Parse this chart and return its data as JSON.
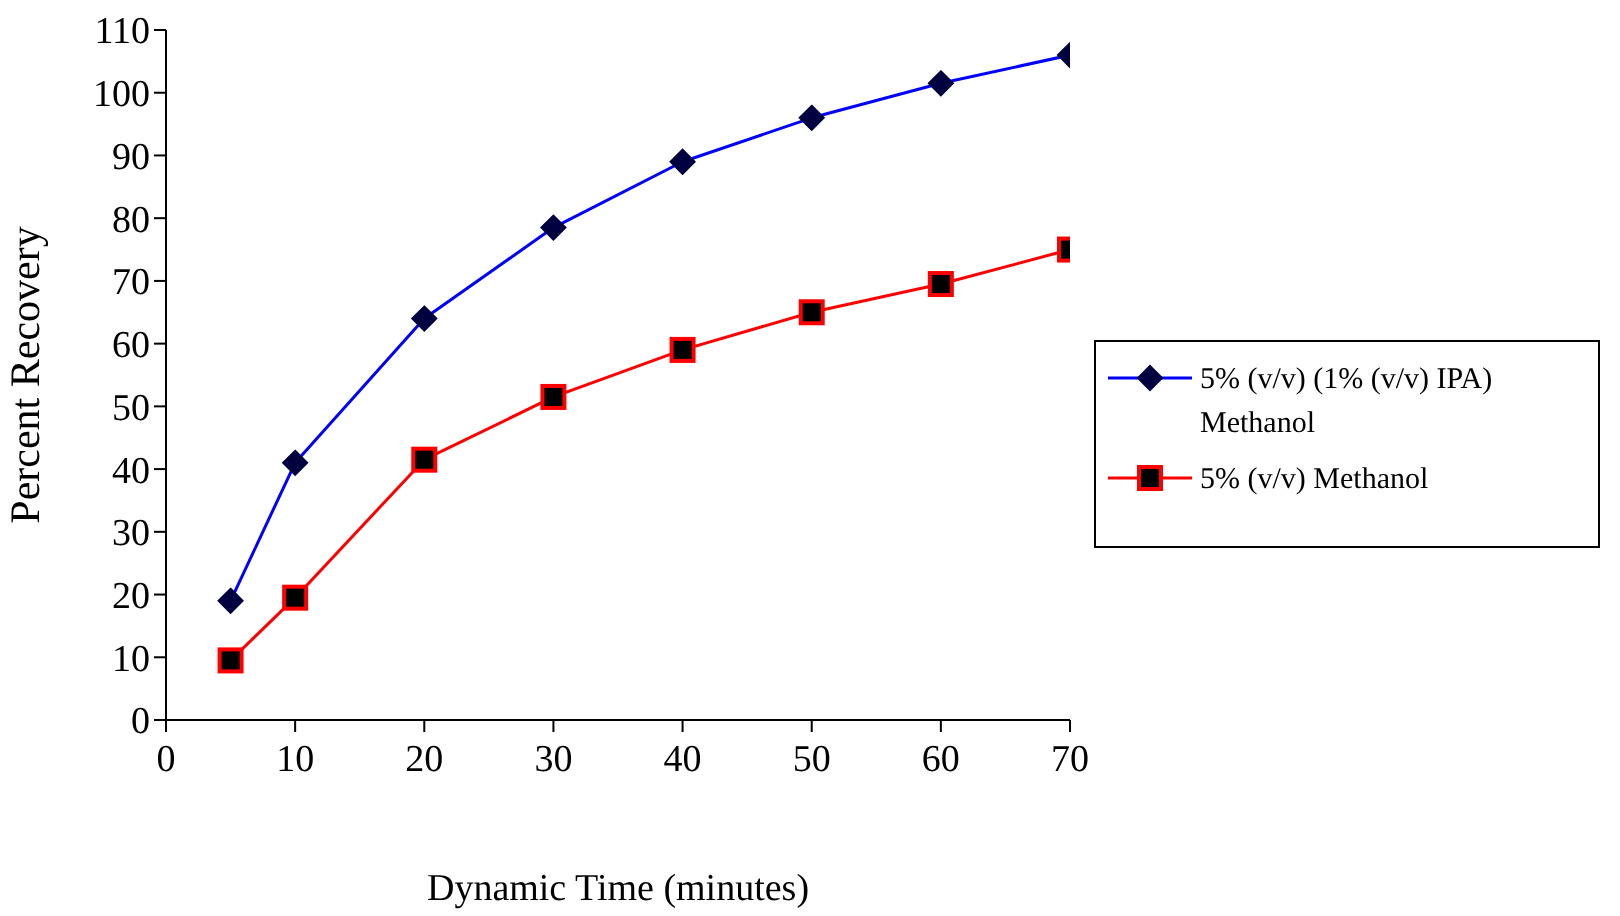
{
  "chart_data": {
    "type": "line",
    "xlabel": "Dynamic Time (minutes)",
    "ylabel": "Percent Recovery",
    "x": [
      5,
      10,
      20,
      30,
      40,
      50,
      60,
      70
    ],
    "series": [
      {
        "name": "5% (v/v) (1% (v/v) IPA) Methanol",
        "color": "#0000ff",
        "marker": "diamond",
        "values": [
          19,
          41,
          64,
          78.5,
          89,
          96,
          101.5,
          106
        ]
      },
      {
        "name": "5% (v/v) Methanol",
        "color": "#ff0000",
        "marker": "square",
        "values": [
          9.5,
          19.5,
          41.5,
          51.5,
          59,
          65,
          69.5,
          75
        ]
      }
    ],
    "xlim": [
      0,
      70
    ],
    "xticks": [
      0,
      10,
      20,
      30,
      40,
      50,
      60,
      70
    ],
    "ylim": [
      0,
      110
    ],
    "yticks": [
      0,
      10,
      20,
      30,
      40,
      50,
      60,
      70,
      80,
      90,
      100,
      110
    ],
    "grid": false,
    "legend": "right",
    "line_style": "solid"
  }
}
